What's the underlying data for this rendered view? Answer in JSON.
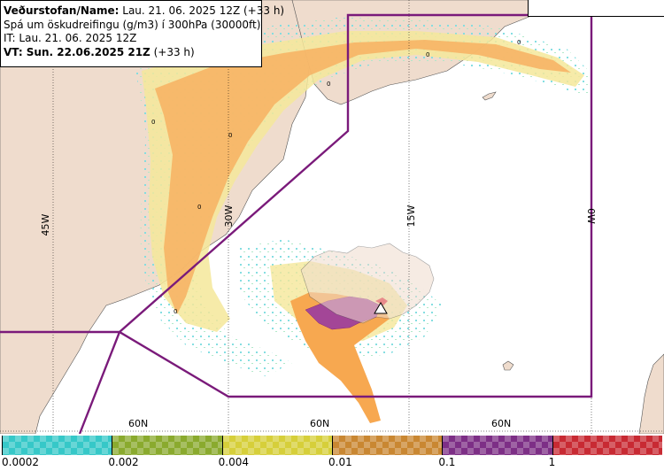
{
  "header": {
    "line1_label": "Veðurstofan/Name:",
    "line1_value": "Lau. 21. 06. 2025 12Z (+33 h)",
    "line2": "Spá um öskudreifingu (g/m3) í 300hPa (30000ft)",
    "line3": "IT: Lau. 21. 06. 2025 12Z",
    "line4_label": "VT: Sun. 22.06.2025 21Z",
    "line4_value": "(+33 h)"
  },
  "map": {
    "meridians": [
      "45W",
      "30W",
      "15W",
      "0W"
    ],
    "parallels": [
      "60N",
      "60N",
      "60N"
    ],
    "contour_labels": [
      "0",
      "0",
      "0",
      "0",
      "0",
      "0",
      "0"
    ],
    "colors": {
      "land": "#efdccd",
      "sea": "#ffffff",
      "boundary": "#7a1a7a",
      "grid": "#000000"
    }
  },
  "legend": {
    "labels": [
      "0.0002",
      "0.002",
      "0.004",
      "0.01",
      "0.1",
      "1"
    ],
    "colors": [
      "#36c8c8",
      "#8aaa2e",
      "#d6cf3a",
      "#c98732",
      "#7d2f86",
      "#c82a33"
    ]
  }
}
